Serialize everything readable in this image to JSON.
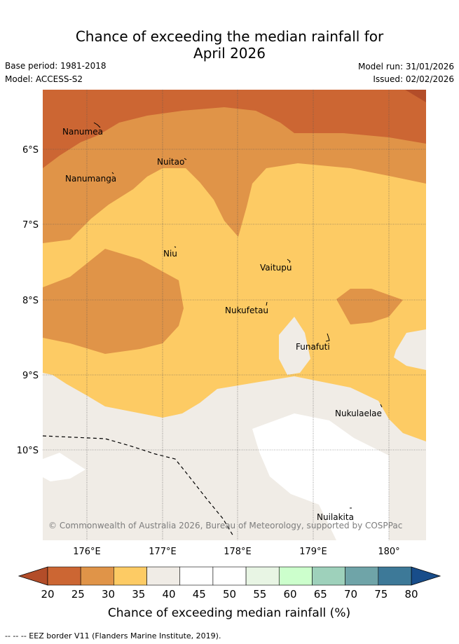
{
  "header": {
    "title_line1": "Chance of exceeding the median rainfall for",
    "title_line2": "April 2026",
    "base_period": "Base period: 1981-2018",
    "model": "Model: ACCESS-S2",
    "model_run": "Model run: 31/01/2026",
    "issued": "Issued: 02/02/2026"
  },
  "map": {
    "lat_labels": [
      "6°S",
      "7°S",
      "8°S",
      "9°S",
      "10°S"
    ],
    "lon_labels": [
      "176°E",
      "177°E",
      "178°E",
      "179°E",
      "180°"
    ],
    "places": [
      {
        "name": "Nanumea"
      },
      {
        "name": "Nuitao"
      },
      {
        "name": "Nanumanga"
      },
      {
        "name": "Niu"
      },
      {
        "name": "Vaitupu"
      },
      {
        "name": "Nukufetau"
      },
      {
        "name": "Funafuti"
      },
      {
        "name": "Nukulaelae"
      },
      {
        "name": "Nuilakita"
      }
    ],
    "copyright": "© Commonwealth of Australia 2026, Bureau of Meteorology, supported by COSPPac"
  },
  "legend": {
    "ticks": [
      "20",
      "25",
      "30",
      "35",
      "40",
      "45",
      "50",
      "55",
      "60",
      "65",
      "70",
      "75",
      "80"
    ],
    "colors": [
      "#b34d29",
      "#cc6633",
      "#e09448",
      "#fdcb64",
      "#f0ece6",
      "#ffffff",
      "#ffffff",
      "#e8f5e4",
      "#ccffcc",
      "#9ed1bb",
      "#6fa4a8",
      "#3d7998",
      "#184d8a"
    ],
    "label": "Chance of exceeding median rainfall (%)"
  },
  "footnote": "--  --  -- EEZ border V11 (Flanders Marine Institute, 2019)."
}
